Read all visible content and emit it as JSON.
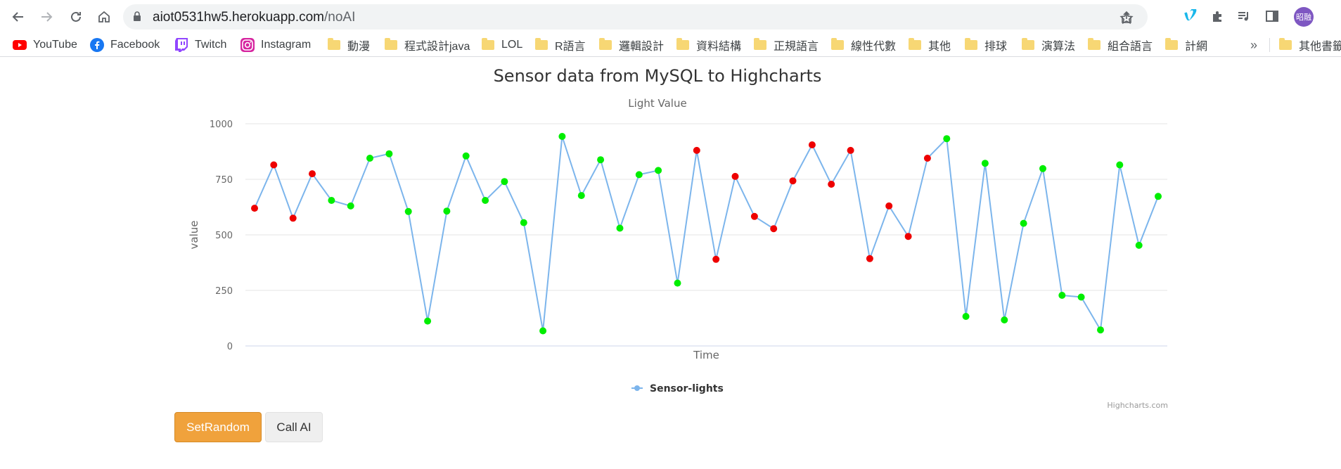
{
  "browser": {
    "url_host": "aiot0531hw5.herokuapp.com",
    "url_path": "/noAI",
    "profile_initials": "昭融"
  },
  "bookmarks": [
    {
      "label": "YouTube",
      "icon": "youtube-icon"
    },
    {
      "label": "Facebook",
      "icon": "facebook-icon"
    },
    {
      "label": "Twitch",
      "icon": "twitch-icon"
    },
    {
      "label": "Instagram",
      "icon": "instagram-icon"
    },
    {
      "label": "動漫",
      "icon": "folder-icon"
    },
    {
      "label": "程式設計java",
      "icon": "folder-icon"
    },
    {
      "label": "LOL",
      "icon": "folder-icon"
    },
    {
      "label": "R語言",
      "icon": "folder-icon"
    },
    {
      "label": "邏輯設計",
      "icon": "folder-icon"
    },
    {
      "label": "資料結構",
      "icon": "folder-icon"
    },
    {
      "label": "正規語言",
      "icon": "folder-icon"
    },
    {
      "label": "線性代數",
      "icon": "folder-icon"
    },
    {
      "label": "其他",
      "icon": "folder-icon"
    },
    {
      "label": "排球",
      "icon": "folder-icon"
    },
    {
      "label": "演算法",
      "icon": "folder-icon"
    },
    {
      "label": "組合語言",
      "icon": "folder-icon"
    },
    {
      "label": "計網",
      "icon": "folder-icon"
    }
  ],
  "bookmarks_overflow": "»",
  "other_bookmarks": "其他書籤",
  "chart": {
    "title": "Sensor data from MySQL to Highcharts",
    "subtitle": "Light Value",
    "credits": "Highcharts.com",
    "colors": {
      "line": "#7cb5ec",
      "high": "#ee0000",
      "low": "#00ee00"
    }
  },
  "chart_data": {
    "type": "line",
    "title": "Sensor data from MySQL to Highcharts",
    "subtitle": "Light Value",
    "xlabel": "Time",
    "ylabel": "value",
    "ylim": [
      0,
      1000
    ],
    "yticks": [
      0,
      250,
      500,
      750,
      1000
    ],
    "grid": true,
    "legend": "bottom-center",
    "series": [
      {
        "name": "Sensor-lights",
        "values": [
          620,
          815,
          575,
          775,
          655,
          630,
          845,
          865,
          605,
          112,
          607,
          855,
          655,
          740,
          555,
          68,
          943,
          677,
          838,
          530,
          771,
          790,
          283,
          880,
          390,
          763,
          583,
          528,
          743,
          905,
          728,
          880,
          393,
          630,
          493,
          845,
          933,
          133,
          822,
          117,
          552,
          798,
          228,
          220,
          72,
          815,
          453,
          673
        ],
        "marker_colors": [
          "red",
          "red",
          "red",
          "red",
          "green",
          "green",
          "green",
          "green",
          "green",
          "green",
          "green",
          "green",
          "green",
          "green",
          "green",
          "green",
          "green",
          "green",
          "green",
          "green",
          "green",
          "green",
          "green",
          "red",
          "red",
          "red",
          "red",
          "red",
          "red",
          "red",
          "red",
          "red",
          "red",
          "red",
          "red",
          "red",
          "green",
          "green",
          "green",
          "green",
          "green",
          "green",
          "green",
          "green",
          "green",
          "green",
          "green",
          "green"
        ]
      }
    ]
  },
  "buttons": {
    "set_random": "SetRandom",
    "call_ai": "Call AI"
  }
}
